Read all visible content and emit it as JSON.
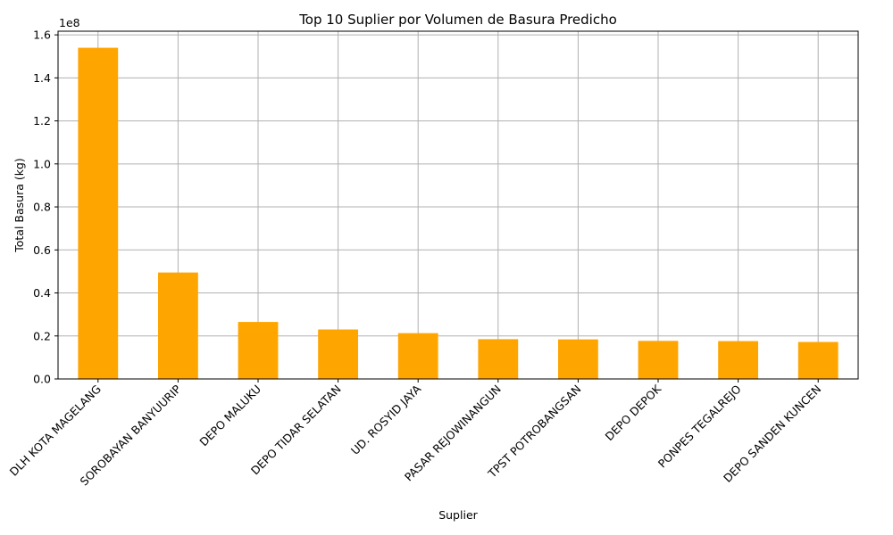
{
  "chart_data": {
    "type": "bar",
    "title": "Top 10 Suplier por Volumen de Basura Predicho",
    "xlabel": "Suplier",
    "ylabel": "Total Basura (kg)",
    "y_offset_text": "1e8",
    "categories": [
      "DLH KOTA MAGELANG",
      "SOROBAYAN BANYUURIP",
      "DEPO MALUKU",
      "DEPO TIDAR SELATAN",
      "UD. ROSYID JAYA",
      "PASAR REJOWINANGUN",
      "TPST POTROBANGSAN",
      "DEPO DEPOK",
      "PONPES TEGALREJO",
      "DEPO SANDEN KUNCEN"
    ],
    "values": [
      154000000,
      49500000,
      26500000,
      23000000,
      21300000,
      18500000,
      18400000,
      17700000,
      17600000,
      17200000
    ],
    "ylim": [
      0,
      161700000
    ],
    "yticks": [
      0,
      20000000,
      40000000,
      60000000,
      80000000,
      100000000,
      120000000,
      140000000,
      160000000
    ],
    "ytick_labels": [
      "0.0",
      "0.2",
      "0.4",
      "0.6",
      "0.8",
      "1.0",
      "1.2",
      "1.4",
      "1.6"
    ],
    "grid": true,
    "bar_color": "#ffa500",
    "grid_color": "#b0b0b0"
  }
}
